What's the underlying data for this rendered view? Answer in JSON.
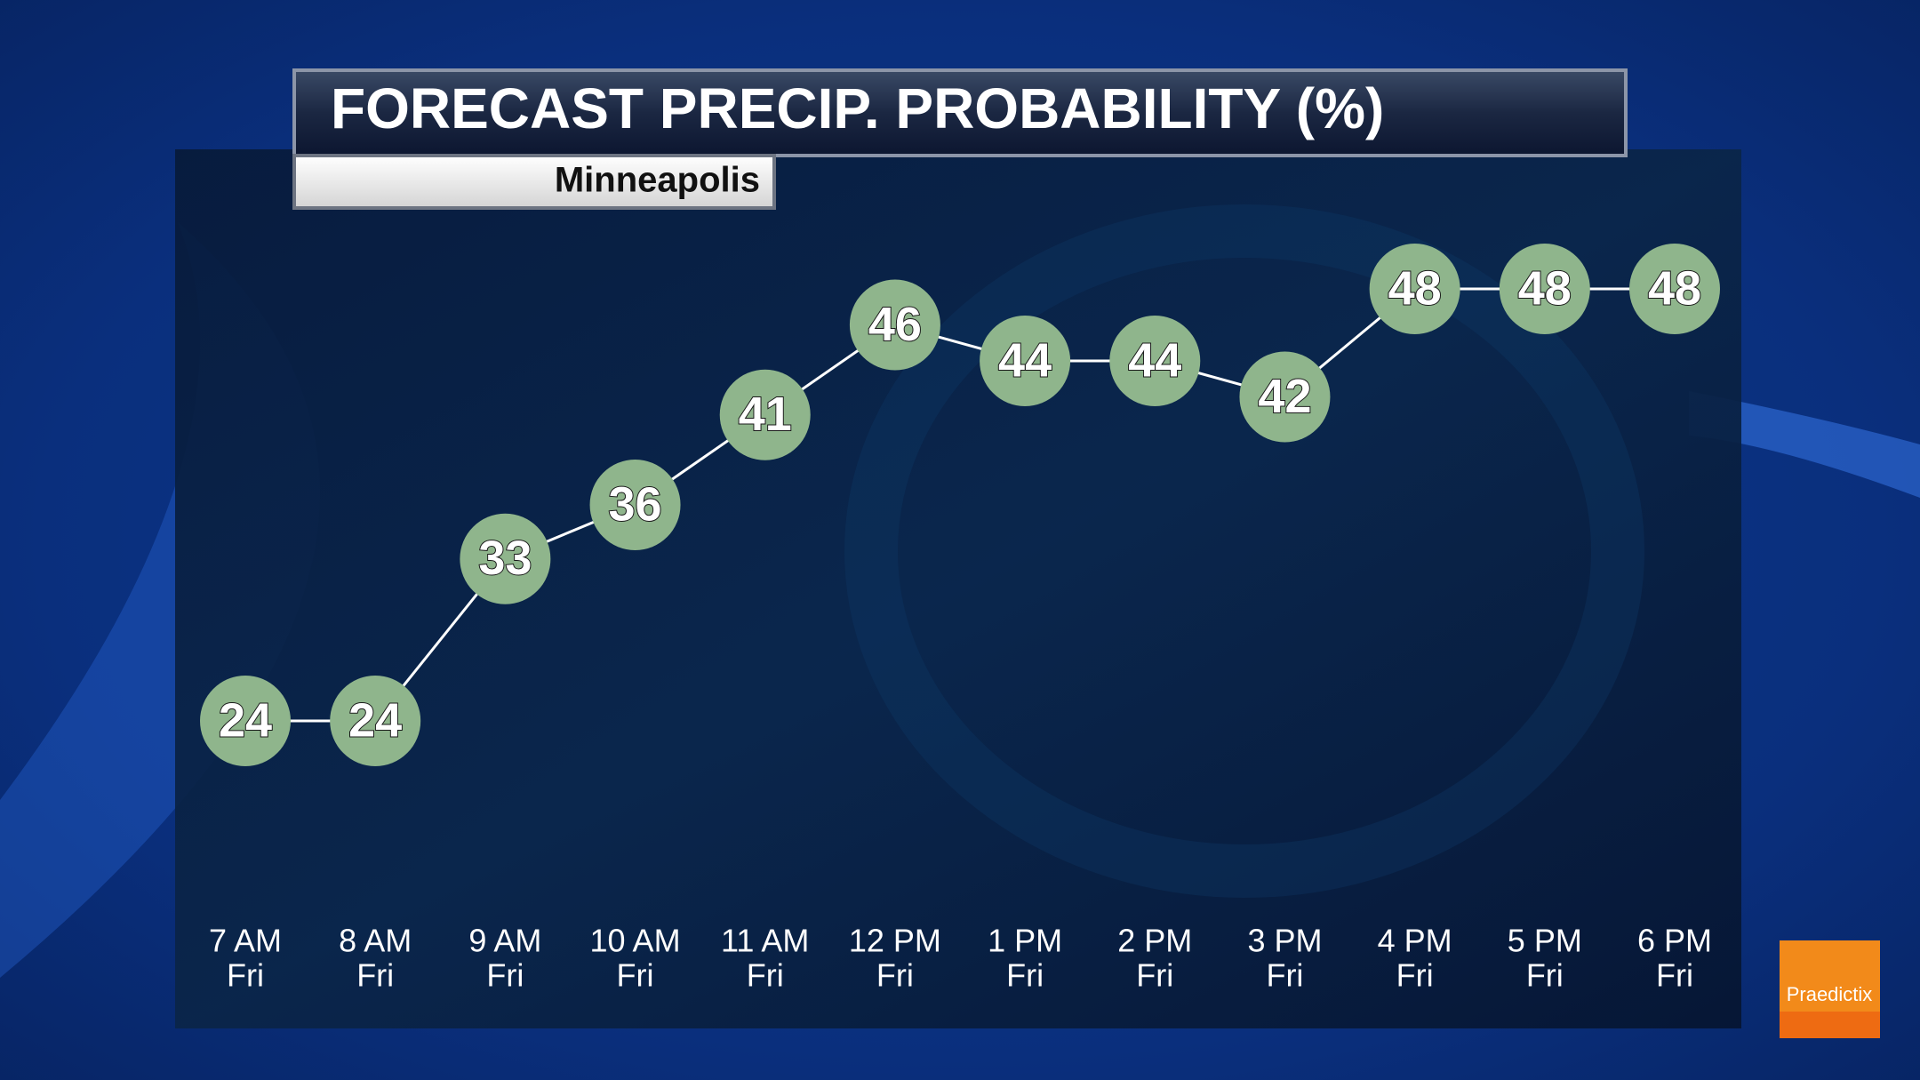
{
  "chart_data": {
    "type": "line",
    "title": "FORECAST PRECIP. PROBABILITY (%)",
    "subtitle": "Minneapolis",
    "logo": "Praedictix",
    "categories": [
      [
        "7 AM",
        "Fri"
      ],
      [
        "8 AM",
        "Fri"
      ],
      [
        "9 AM",
        "Fri"
      ],
      [
        "10 AM",
        "Fri"
      ],
      [
        "11 AM",
        "Fri"
      ],
      [
        "12 PM",
        "Fri"
      ],
      [
        "1 PM",
        "Fri"
      ],
      [
        "2 PM",
        "Fri"
      ],
      [
        "3 PM",
        "Fri"
      ],
      [
        "4 PM",
        "Fri"
      ],
      [
        "5 PM",
        "Fri"
      ],
      [
        "6 PM",
        "Fri"
      ]
    ],
    "values": [
      24,
      24,
      33,
      36,
      41,
      46,
      44,
      44,
      42,
      48,
      48,
      48
    ],
    "color": "#8fb58c"
  }
}
